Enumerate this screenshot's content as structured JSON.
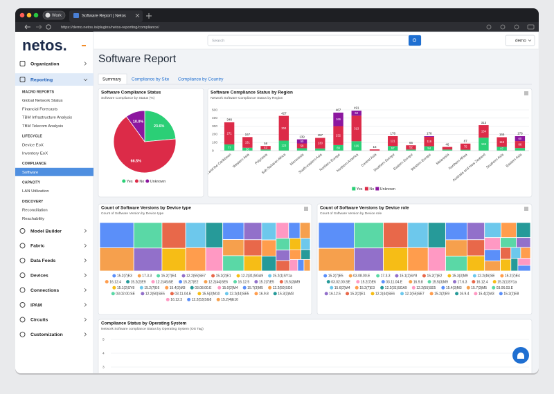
{
  "browser": {
    "profile": "Work",
    "tab_title": "Software Report | Netos",
    "url": "https://demo.netos.io/plugins/netos-reporting/compliance/"
  },
  "sidebar": {
    "logo": "netos.",
    "top": [
      "Organization",
      "Reporting"
    ],
    "groups": [
      {
        "heading": "MACRO REPORTS",
        "items": [
          "Global Network Status",
          "Financial Forecasts",
          "TBM Infrastructure Analysis",
          "TBM Telecom Analysis"
        ]
      },
      {
        "heading": "LIFECYCLE",
        "items": [
          "Device EoX",
          "Inventory EoX"
        ]
      },
      {
        "heading": "COMPLIANCE",
        "items": [
          "Software"
        ]
      },
      {
        "heading": "CAPACITY",
        "items": [
          "LAN Utilization"
        ]
      },
      {
        "heading": "DISCOVERY",
        "items": [
          "Reconciliation",
          "Reachability"
        ]
      }
    ],
    "bottom": [
      "Model Builder",
      "Fabric",
      "Data Feeds",
      "Devices",
      "Connections",
      "IPAM",
      "Circuits",
      "Customization"
    ]
  },
  "header": {
    "search_placeholder": "Search",
    "user": "demo"
  },
  "page": {
    "title": "Software Report",
    "tabs": [
      "Summary",
      "Compliance by Site",
      "Compliance by Country"
    ]
  },
  "chart_data": [
    {
      "type": "pie",
      "title": "Software Compliance Status",
      "subtitle": "Software Compliance by Status (%)",
      "categories": [
        "Yes",
        "No",
        "Unknown"
      ],
      "values": [
        23.6,
        66.5,
        10.0
      ],
      "value_labels": [
        "23.6%",
        "66.5%",
        "10.0%"
      ],
      "colors": [
        "#2bcf76",
        "#dc2b48",
        "#8c179f"
      ]
    },
    {
      "type": "bar",
      "stacked": true,
      "title": "Software Compliance Status by Region",
      "subtitle": "Network Software Compliance Status by Region",
      "categories": [
        "Latin America and the Caribbean",
        "Western Asia",
        "Polynesia",
        "Sub-Saharan Africa",
        "Micronesia",
        "South-eastern Asia",
        "Northern Europe",
        "Northern America",
        "Central Asia",
        "Southern Europe",
        "Eastern Europe",
        "Western Europe",
        "Melanesia",
        "Northern Africa",
        "Australia and New Zealand",
        "Southern Asia",
        "Eastern Asia"
      ],
      "series": [
        {
          "name": "Yes",
          "color": "#2bcf76",
          "values": [
            77,
            36,
            15,
            123,
            30,
            27,
            69,
            116,
            0,
            57,
            14,
            54,
            14,
            12,
            159,
            47,
            32
          ]
        },
        {
          "name": "No",
          "color": "#dc2b48",
          "values": [
            271,
            131,
            43,
            304,
            59,
            130,
            232,
            313,
            16,
            121,
            52,
            116,
            32,
            75,
            154,
            118,
            86
          ]
        },
        {
          "name": "Unknown",
          "color": "#8c179f",
          "values": [
            0,
            0,
            0,
            0,
            50,
            0,
            166,
            62,
            0,
            0,
            0,
            8,
            0,
            0,
            0,
            0,
            60
          ]
        }
      ],
      "totals": [
        348,
        167,
        58,
        427,
        139,
        157,
        467,
        491,
        16,
        178,
        66,
        178,
        46,
        87,
        313,
        165,
        178
      ],
      "ylim": [
        0,
        500
      ],
      "yticks": [
        0,
        100,
        200,
        300,
        400,
        500
      ],
      "grid": true
    },
    {
      "type": "treemap",
      "title": "Count of Software Versions by Device type",
      "subtitle": "Count of Software Version by Device type",
      "colors": [
        "#5b8ff9",
        "#f6a04d",
        "#5ad8a6",
        "#9270ca",
        "#e8684a",
        "#f6bd16",
        "#6dc8ec",
        "#ff9d4d",
        "#269a99",
        "#ff99c3"
      ],
      "categories": [
        "15.2(7)E3",
        "17.3.3",
        "15.2(7)E4",
        "12.2(55)SE7",
        "15.2(2)E1",
        "12.2(31)SGA9",
        "15.2(1)SY1a",
        "16.12.4",
        "15.2(2)E9",
        "12.2(46)SE",
        "15.2(7)E2",
        "12.2(44)SE6",
        "16.12.5",
        "15.2(7)E5",
        "15.5(3)M9",
        "15.1(2)SY8",
        "15.2(7)E6",
        "15.4(3)M3",
        "03.08.00.E",
        "15.0(2)M4",
        "15.7(3)M5",
        "12.2(50)SG6",
        "03.02.00.SE",
        "12.2(50)SE5",
        "03.11.04.E",
        "15.5(3)M10",
        "12.2(44)SE5",
        "16.9.8",
        "15.3(3)M3",
        "16.12.3",
        "12.2(53)SG8",
        "15.2(4)E10"
      ],
      "values": [
        48,
        44,
        40,
        36,
        34,
        30,
        28,
        26,
        24,
        22,
        20,
        19,
        18,
        17,
        16,
        15,
        14,
        13,
        12,
        11,
        10,
        9,
        9,
        8,
        8,
        7,
        6,
        6,
        5,
        5,
        4,
        4
      ]
    },
    {
      "type": "treemap",
      "title": "Count of Software Versions by Device role",
      "subtitle": "Count of Software Version by Device role",
      "colors": [
        "#5b8ff9",
        "#f6a04d",
        "#5ad8a6",
        "#9270ca",
        "#e8684a",
        "#f6bd16",
        "#6dc8ec",
        "#ff9d4d",
        "#269a99",
        "#ff99c3"
      ],
      "categories": [
        "15.2(7)E5",
        "03.08.00.E",
        "17.3.3",
        "15.1(2)SY8",
        "15.2(7)E2",
        "15.3(3)M9",
        "12.2(46)SE",
        "15.2(7)E4",
        "03.02.00.SE",
        "15.2(7)E6",
        "03.11.04.E",
        "16.9.8",
        "15.5(3)M9",
        "17.6.3",
        "16.12.4",
        "15.2(1)SY1a",
        "15.6(2)M4",
        "15.2(7)E3",
        "12.2(31)SGA9",
        "12.2(55)SE5",
        "15.4(3)M3",
        "15.7(3)M5",
        "03.06.03.E",
        "16.12.5",
        "15.2(2)E1",
        "12.2(44)SE6",
        "12.2(55)SE7",
        "15.2(2)E9",
        "16.9.4",
        "15.4(2)M3",
        "15.2(2)E8"
      ],
      "values": [
        52,
        46,
        42,
        38,
        35,
        32,
        29,
        27,
        25,
        23,
        21,
        20,
        18,
        17,
        16,
        15,
        14,
        13,
        12,
        11,
        10,
        9,
        9,
        8,
        7,
        7,
        6,
        6,
        5,
        5,
        4
      ]
    },
    {
      "type": "bar",
      "title": "Compliance Status by Operating System",
      "subtitle": "Network Software compliance Status by Operating System (OS Tag)",
      "ylim": [
        0,
        5
      ],
      "yticks": [
        3,
        4,
        5
      ],
      "grid": true
    }
  ]
}
